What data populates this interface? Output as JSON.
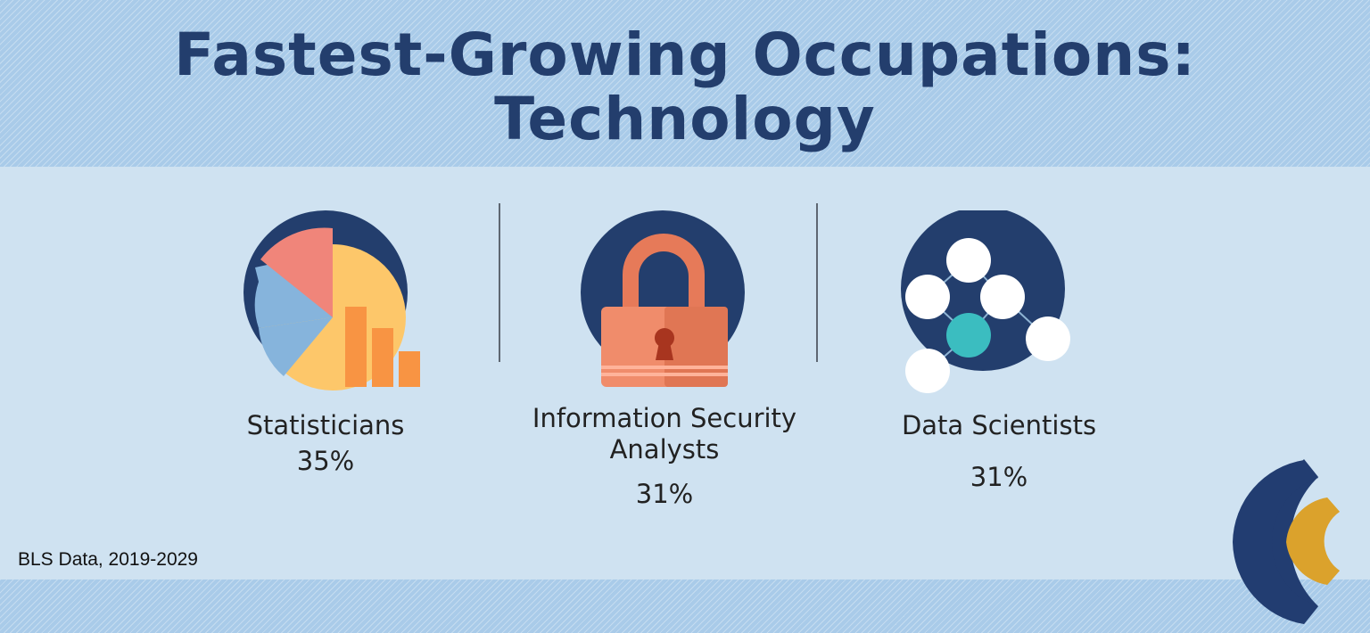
{
  "title": {
    "line1": "Fastest-Growing Occupations:",
    "line2": "Technology"
  },
  "occupations": [
    {
      "label": "Statisticians",
      "value": "35%",
      "icon": "pie-chart-icon"
    },
    {
      "label_line1": "Information Security",
      "label_line2": "Analysts",
      "value": "31%",
      "icon": "padlock-icon"
    },
    {
      "label": "Data Scientists",
      "value": "31%",
      "icon": "network-nodes-icon"
    }
  ],
  "source": "BLS Data, 2019-2029",
  "colors": {
    "navy": "#233e6d",
    "band": "#a9cbe9",
    "background": "#cfe2f1",
    "accent_orange": "#f08a5d",
    "accent_teal": "#3bbdc0",
    "logo_gold": "#dba22c"
  }
}
